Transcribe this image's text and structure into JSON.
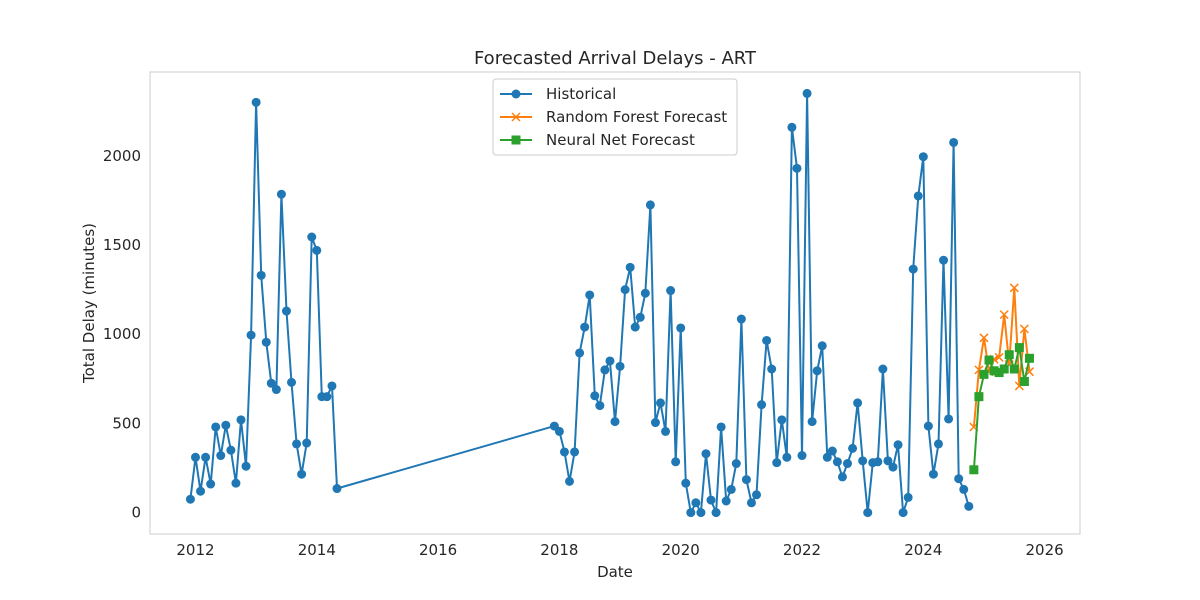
{
  "chart_data": {
    "type": "line",
    "title": "Forecasted Arrival Delays - ART",
    "xlabel": "Date",
    "ylabel": "Total Delay (minutes)",
    "xlim": [
      "2011-04-01",
      "2026-08-01"
    ],
    "ylim": [
      -120,
      2470
    ],
    "x_ticks": [
      "2012",
      "2014",
      "2016",
      "2018",
      "2020",
      "2022",
      "2024",
      "2026"
    ],
    "y_ticks": [
      0,
      500,
      1000,
      1500,
      2000
    ],
    "grid": false,
    "legend_position": "top-center",
    "series": [
      {
        "name": "Historical",
        "color": "#1f77b4",
        "marker": "circle",
        "points": [
          [
            "2011-12-01",
            75
          ],
          [
            "2012-01-01",
            310
          ],
          [
            "2012-02-01",
            120
          ],
          [
            "2012-03-01",
            310
          ],
          [
            "2012-04-01",
            160
          ],
          [
            "2012-05-01",
            480
          ],
          [
            "2012-06-01",
            320
          ],
          [
            "2012-07-01",
            490
          ],
          [
            "2012-08-01",
            350
          ],
          [
            "2012-09-01",
            165
          ],
          [
            "2012-10-01",
            520
          ],
          [
            "2012-11-01",
            260
          ],
          [
            "2012-12-01",
            995
          ],
          [
            "2013-01-01",
            2300
          ],
          [
            "2013-02-01",
            1330
          ],
          [
            "2013-03-01",
            955
          ],
          [
            "2013-04-01",
            725
          ],
          [
            "2013-05-01",
            690
          ],
          [
            "2013-06-01",
            1785
          ],
          [
            "2013-07-01",
            1130
          ],
          [
            "2013-08-01",
            730
          ],
          [
            "2013-09-01",
            385
          ],
          [
            "2013-10-01",
            215
          ],
          [
            "2013-11-01",
            390
          ],
          [
            "2013-12-01",
            1545
          ],
          [
            "2014-01-01",
            1470
          ],
          [
            "2014-02-01",
            650
          ],
          [
            "2014-03-01",
            650
          ],
          [
            "2014-04-01",
            710
          ],
          [
            "2014-05-01",
            135
          ],
          [
            "2017-12-01",
            485
          ],
          [
            "2018-01-01",
            455
          ],
          [
            "2018-02-01",
            340
          ],
          [
            "2018-03-01",
            175
          ],
          [
            "2018-04-01",
            340
          ],
          [
            "2018-05-01",
            895
          ],
          [
            "2018-06-01",
            1040
          ],
          [
            "2018-07-01",
            1220
          ],
          [
            "2018-08-01",
            655
          ],
          [
            "2018-09-01",
            600
          ],
          [
            "2018-10-01",
            800
          ],
          [
            "2018-11-01",
            850
          ],
          [
            "2018-12-01",
            510
          ],
          [
            "2019-01-01",
            820
          ],
          [
            "2019-02-01",
            1250
          ],
          [
            "2019-03-01",
            1375
          ],
          [
            "2019-04-01",
            1040
          ],
          [
            "2019-05-01",
            1095
          ],
          [
            "2019-06-01",
            1230
          ],
          [
            "2019-07-01",
            1725
          ],
          [
            "2019-08-01",
            505
          ],
          [
            "2019-09-01",
            615
          ],
          [
            "2019-10-01",
            455
          ],
          [
            "2019-11-01",
            1245
          ],
          [
            "2019-12-01",
            285
          ],
          [
            "2020-01-01",
            1035
          ],
          [
            "2020-02-01",
            165
          ],
          [
            "2020-03-01",
            0
          ],
          [
            "2020-04-01",
            55
          ],
          [
            "2020-05-01",
            0
          ],
          [
            "2020-06-01",
            330
          ],
          [
            "2020-07-01",
            70
          ],
          [
            "2020-08-01",
            0
          ],
          [
            "2020-09-01",
            480
          ],
          [
            "2020-10-01",
            65
          ],
          [
            "2020-11-01",
            130
          ],
          [
            "2020-12-01",
            275
          ],
          [
            "2021-01-01",
            1085
          ],
          [
            "2021-02-01",
            185
          ],
          [
            "2021-03-01",
            55
          ],
          [
            "2021-04-01",
            100
          ],
          [
            "2021-05-01",
            605
          ],
          [
            "2021-06-01",
            965
          ],
          [
            "2021-07-01",
            805
          ],
          [
            "2021-08-01",
            280
          ],
          [
            "2021-09-01",
            520
          ],
          [
            "2021-10-01",
            310
          ],
          [
            "2021-11-01",
            2160
          ],
          [
            "2021-12-01",
            1930
          ],
          [
            "2022-01-01",
            320
          ],
          [
            "2022-02-01",
            2350
          ],
          [
            "2022-03-01",
            510
          ],
          [
            "2022-04-01",
            795
          ],
          [
            "2022-05-01",
            935
          ],
          [
            "2022-06-01",
            310
          ],
          [
            "2022-07-01",
            345
          ],
          [
            "2022-08-01",
            285
          ],
          [
            "2022-09-01",
            200
          ],
          [
            "2022-10-01",
            275
          ],
          [
            "2022-11-01",
            360
          ],
          [
            "2022-12-01",
            615
          ],
          [
            "2023-01-01",
            290
          ],
          [
            "2023-02-01",
            0
          ],
          [
            "2023-03-01",
            280
          ],
          [
            "2023-04-01",
            285
          ],
          [
            "2023-05-01",
            805
          ],
          [
            "2023-06-01",
            290
          ],
          [
            "2023-07-01",
            255
          ],
          [
            "2023-08-01",
            380
          ],
          [
            "2023-09-01",
            0
          ],
          [
            "2023-10-01",
            85
          ],
          [
            "2023-11-01",
            1365
          ],
          [
            "2023-12-01",
            1775
          ],
          [
            "2024-01-01",
            1995
          ],
          [
            "2024-02-01",
            485
          ],
          [
            "2024-03-01",
            215
          ],
          [
            "2024-04-01",
            385
          ],
          [
            "2024-05-01",
            1415
          ],
          [
            "2024-06-01",
            525
          ],
          [
            "2024-07-01",
            2075
          ],
          [
            "2024-08-01",
            190
          ],
          [
            "2024-09-01",
            130
          ],
          [
            "2024-10-01",
            35
          ]
        ]
      },
      {
        "name": "Random Forest Forecast",
        "color": "#ff7f0e",
        "marker": "x",
        "points": [
          [
            "2024-11-01",
            480
          ],
          [
            "2024-12-01",
            800
          ],
          [
            "2025-01-01",
            980
          ],
          [
            "2025-02-01",
            790
          ],
          [
            "2025-03-01",
            860
          ],
          [
            "2025-04-01",
            870
          ],
          [
            "2025-05-01",
            1110
          ],
          [
            "2025-06-01",
            830
          ],
          [
            "2025-07-01",
            1260
          ],
          [
            "2025-08-01",
            710
          ],
          [
            "2025-09-01",
            1030
          ],
          [
            "2025-10-01",
            790
          ]
        ]
      },
      {
        "name": "Neural Net Forecast",
        "color": "#2ca02c",
        "marker": "square",
        "points": [
          [
            "2024-11-01",
            240
          ],
          [
            "2024-12-01",
            650
          ],
          [
            "2025-01-01",
            775
          ],
          [
            "2025-02-01",
            855
          ],
          [
            "2025-03-01",
            795
          ],
          [
            "2025-04-01",
            785
          ],
          [
            "2025-05-01",
            805
          ],
          [
            "2025-06-01",
            885
          ],
          [
            "2025-07-01",
            805
          ],
          [
            "2025-08-01",
            925
          ],
          [
            "2025-09-01",
            735
          ],
          [
            "2025-10-01",
            865
          ]
        ]
      }
    ]
  }
}
